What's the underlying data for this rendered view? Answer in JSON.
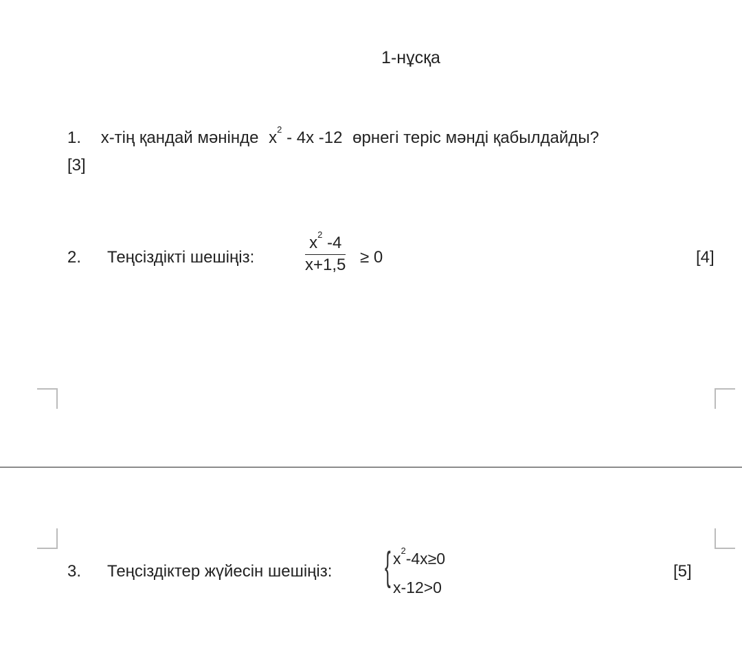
{
  "document": {
    "title": "1-нұсқа",
    "questions": [
      {
        "number": "1.",
        "text_before": "х-тің қандай мәнінде",
        "expr_base": "x",
        "expr_exp": "2",
        "expr_rest": "- 4x -12",
        "text_after": "өрнегі теріс мәнді қабылдайды?",
        "points": "[3]"
      },
      {
        "number": "2.",
        "text": "Теңсіздікті шешіңіз:",
        "num_base": "x",
        "num_exp": "2",
        "num_rest": " -4",
        "den": "x+1,5",
        "relation": "≥ 0",
        "points": "[4]"
      },
      {
        "number": "3.",
        "text": "Теңсіздіктер жүйесін шешіңіз:",
        "line1_base": "x",
        "line1_exp": "2",
        "line1_rest": "-4x≥0",
        "line2": "x-12>0",
        "points": "[5]"
      }
    ]
  }
}
